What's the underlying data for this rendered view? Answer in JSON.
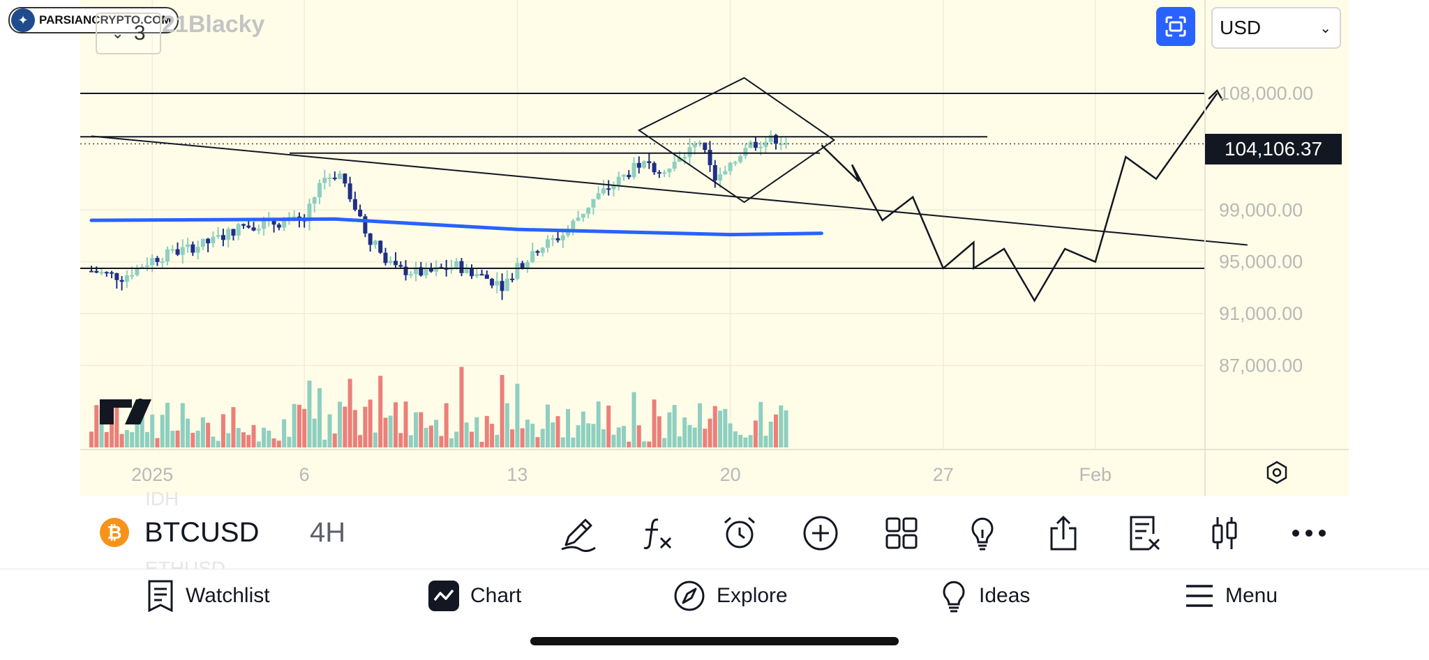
{
  "watermark": {
    "text": "PARSIANCRYPTO.COM"
  },
  "chart_header": {
    "layer_count": "3",
    "author": "21Blacky"
  },
  "currency": {
    "selected": "USD"
  },
  "price_scale": {
    "labels": [
      "108,000.00",
      "99,000.00",
      "95,000.00",
      "91,000.00",
      "87,000.00"
    ],
    "current_price": "104,106.37"
  },
  "time_scale": {
    "labels": [
      "2025",
      "6",
      "13",
      "20",
      "27",
      "Feb"
    ]
  },
  "symbol": {
    "icon_glyph": "₿",
    "name": "BTCUSD",
    "timeframe": "4H",
    "ghost_above": "IDH",
    "ghost_below": "ETHUSD"
  },
  "toolbar_icons": [
    "pencil-icon",
    "function-icon",
    "alarm-icon",
    "add-icon",
    "layout-grid-icon",
    "lightbulb-icon",
    "share-icon",
    "clear-drawings-icon",
    "candles-icon",
    "more-icon"
  ],
  "bottom_nav": [
    {
      "label": "Watchlist",
      "icon": "watchlist-icon"
    },
    {
      "label": "Chart",
      "icon": "chart-icon"
    },
    {
      "label": "Explore",
      "icon": "compass-icon"
    },
    {
      "label": "Ideas",
      "icon": "lightbulb-icon"
    },
    {
      "label": "Menu",
      "icon": "menu-icon"
    }
  ],
  "colors": {
    "up_candle": "#8ecfc0",
    "down_candle": "#1f2f85",
    "ma_line": "#2962ff",
    "vol_up": "#8ecfc0",
    "vol_down": "#ec7f7a",
    "accent": "#2962ff",
    "bitcoin": "#f7931a"
  },
  "chart_data": {
    "type": "candlestick",
    "symbol": "BTCUSD",
    "interval": "4H",
    "y_labels": [
      108000,
      99000,
      95000,
      91000,
      87000
    ],
    "current_price": 104106.37,
    "horizontal_levels": [
      108000,
      104650,
      104300,
      94500
    ],
    "trendline": [
      {
        "date": "2024-12-30",
        "price": 104700
      },
      {
        "date": "2025-02-06",
        "price": 96300
      }
    ],
    "diamond_pattern": {
      "top": 109200,
      "bottom": 99600,
      "left_date": "2025-01-17",
      "right_date": "2025-01-23"
    },
    "moving_average": [
      {
        "date": "2024-12-30",
        "value": 98200
      },
      {
        "date": "2025-01-07",
        "value": 98300
      },
      {
        "date": "2025-01-13",
        "value": 97500
      },
      {
        "date": "2025-01-20",
        "value": 97100
      },
      {
        "date": "2025-01-23",
        "value": 97200
      }
    ],
    "projection_path": [
      {
        "date": "2025-01-23",
        "price": 104000
      },
      {
        "date": "2025-01-24",
        "price": 101200
      },
      {
        "date": "2025-01-24",
        "price": 102500
      },
      {
        "date": "2025-01-25",
        "price": 98200
      },
      {
        "date": "2025-01-26",
        "price": 100000
      },
      {
        "date": "2025-01-27",
        "price": 94500
      },
      {
        "date": "2025-01-28",
        "price": 96500
      },
      {
        "date": "2025-01-28",
        "price": 94500
      },
      {
        "date": "2025-01-29",
        "price": 96000
      },
      {
        "date": "2025-01-30",
        "price": 92000
      },
      {
        "date": "2025-01-31",
        "price": 96000
      },
      {
        "date": "2025-02-01",
        "price": 95000
      },
      {
        "date": "2025-02-02",
        "price": 103100
      },
      {
        "date": "2025-02-03",
        "price": 101400
      },
      {
        "date": "2025-02-05",
        "price": 108000
      }
    ]
  }
}
